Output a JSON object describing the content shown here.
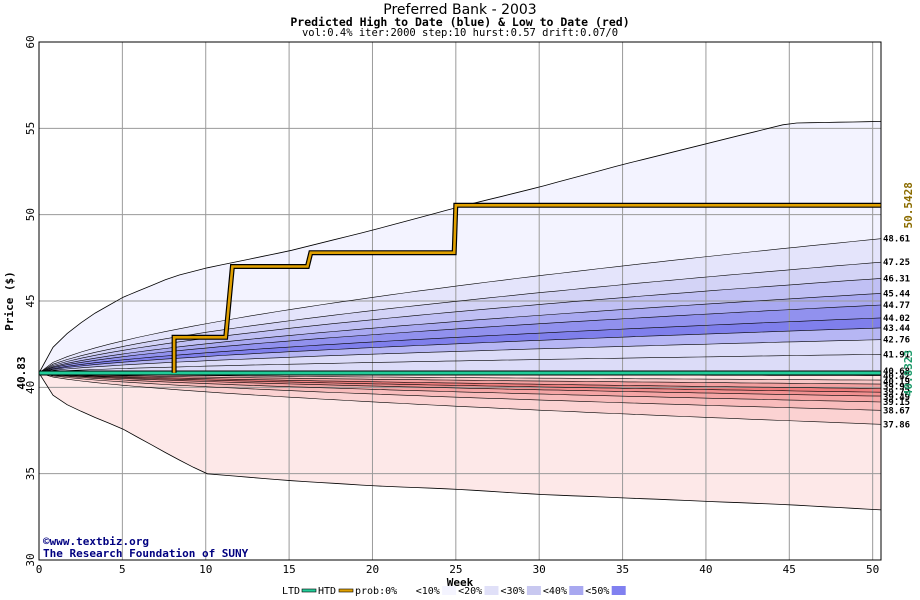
{
  "chart_data": {
    "type": "area",
    "title": "Preferred Bank - 2003",
    "subtitle": "Predicted High to Date (blue) &  Low to Date (red)",
    "params": "vol:0.4% iter:2000 step:10 hurst:0.57 drift:0.07/0",
    "xlabel": "Week",
    "ylabel": "Price ($)",
    "xlim": [
      0,
      50.5
    ],
    "ylim": [
      30,
      60
    ],
    "x_ticks": [
      "0",
      "5",
      "10",
      "15",
      "20",
      "25",
      "30",
      "35",
      "40",
      "45",
      "50"
    ],
    "y_ticks": [
      "30",
      "35",
      "40",
      "45",
      "50",
      "55",
      "60"
    ],
    "grid": true,
    "start_price": 40.83,
    "start_label": "40.83",
    "high_band_edges": [
      {
        "label": "48.61",
        "end": 48.61
      },
      {
        "label": "47.25",
        "end": 47.25
      },
      {
        "label": "46.31",
        "end": 46.31
      },
      {
        "label": "45.44",
        "end": 45.44
      },
      {
        "label": "44.77",
        "end": 44.77
      },
      {
        "label": "44.02",
        "end": 44.02
      },
      {
        "label": "43.44",
        "end": 43.44
      },
      {
        "label": "42.76",
        "end": 42.76
      },
      {
        "label": "41.91",
        "end": 41.91
      }
    ],
    "high_max_envelope": {
      "x": [
        0,
        1,
        3,
        5,
        8,
        10,
        15,
        20,
        25,
        30,
        35,
        40,
        45,
        50.5
      ],
      "y": [
        40.83,
        42.6,
        44.1,
        45.2,
        46.4,
        46.9,
        47.9,
        49.1,
        50.4,
        51.6,
        52.9,
        54.1,
        55.3,
        55.4
      ]
    },
    "high_outer": {
      "x": [
        0,
        1,
        3,
        5,
        8,
        10,
        15,
        20,
        25,
        30,
        35,
        40,
        45,
        50.5
      ],
      "y": [
        40.83,
        40.83,
        40.83,
        40.83,
        40.83,
        40.83,
        40.83,
        40.83,
        40.83,
        40.83,
        40.83,
        40.83,
        40.83,
        40.83
      ]
    },
    "low_band_edges": [
      {
        "label": "40.68",
        "end": 40.68
      },
      {
        "label": "40.42",
        "end": 40.42
      },
      {
        "label": "40.19",
        "end": 40.19
      },
      {
        "label": "39.93",
        "end": 39.93
      },
      {
        "label": "39.72",
        "end": 39.72
      },
      {
        "label": "39.49",
        "end": 39.49
      },
      {
        "label": "39.15",
        "end": 39.15
      },
      {
        "label": "38.67",
        "end": 38.67
      },
      {
        "label": "37.86",
        "end": 37.86
      }
    ],
    "low_min_envelope": {
      "x": [
        0,
        1,
        3,
        5,
        8,
        10,
        15,
        20,
        25,
        30,
        35,
        40,
        45,
        50.5
      ],
      "y": [
        40.83,
        39.3,
        38.4,
        37.6,
        36.0,
        35.0,
        34.6,
        34.3,
        34.1,
        33.8,
        33.6,
        33.4,
        33.2,
        32.9
      ]
    },
    "actual_high_to_date": {
      "name": "HTD",
      "x": [
        8.1,
        8.1,
        11.2,
        11.6,
        16.1,
        16.3,
        24.9,
        25.0,
        50.5
      ],
      "y": [
        40.85,
        42.9,
        42.9,
        47.0,
        47.0,
        47.8,
        47.8,
        50.54,
        50.54
      ],
      "end_label": "50.5428"
    },
    "actual_low_to_date": {
      "name": "LTD",
      "x": [
        0,
        50.5
      ],
      "y": [
        40.83,
        40.83
      ],
      "end_label": "40.8323"
    },
    "legend": [
      "LTD",
      "HTD",
      "prob:0%",
      "<10%",
      "<20%",
      "<30%",
      "<40%",
      "<50%"
    ],
    "legend_colors": [
      "#22cc99",
      "#e0a000",
      "#ffffff",
      "#f4f4ff",
      "#e0e0f8",
      "#c8c8f0",
      "#a8a8f0",
      "#8080f0"
    ],
    "watermark": [
      "©www.textbiz.org",
      "The Research Foundation of SUNY"
    ],
    "colors": {
      "high_fill": [
        "#f3f3ff",
        "#e4e4fb",
        "#d3d3f6",
        "#c0c0f4",
        "#a9a9f1",
        "#9191ee",
        "#7f7fec",
        "#b6b6f4",
        "#dcdcf8"
      ],
      "low_fill": [
        "#fde8e8",
        "#fbd2d2",
        "#f8bcbc",
        "#f5a5a5",
        "#f29090",
        "#f07e7e",
        "#f3a0a0",
        "#f8c6c6",
        "#fde3e3"
      ],
      "htd_line": "#e0a000",
      "ltd_line": "#22cc99",
      "label_htd": "#8b6c00",
      "label_ltd": "#1c9a6a"
    }
  }
}
